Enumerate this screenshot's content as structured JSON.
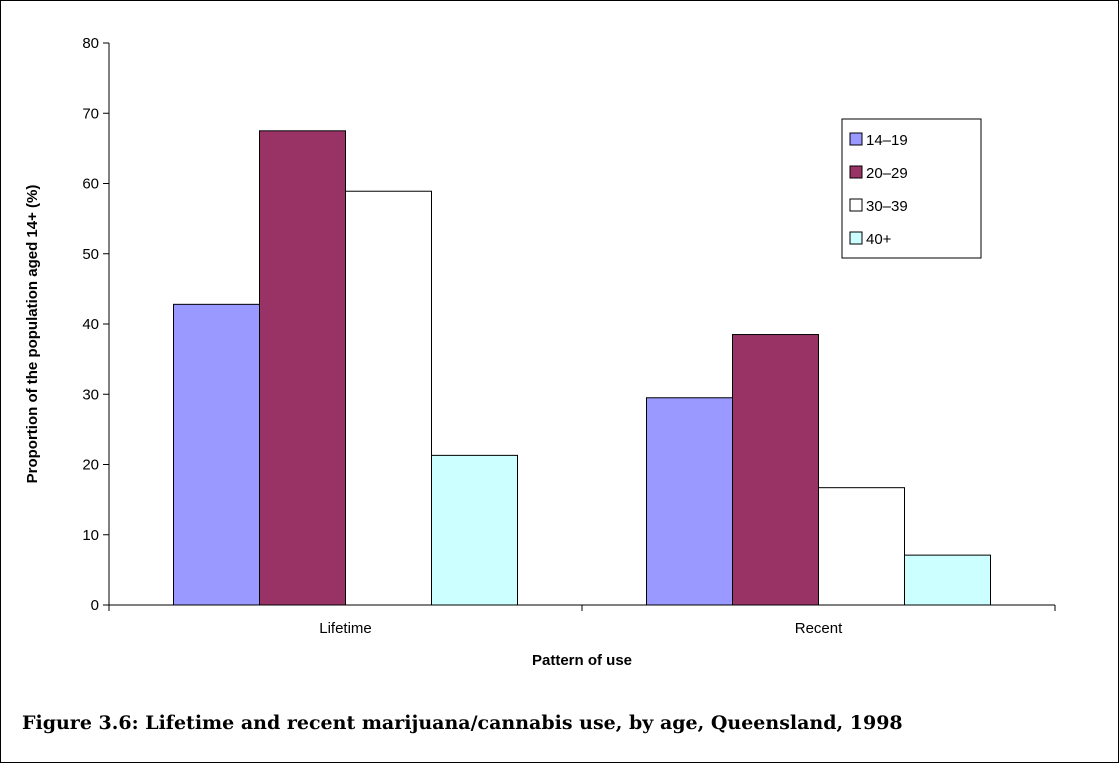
{
  "caption": "Figure 3.6: Lifetime and recent marijuana/cannabis use, by age, Queensland, 1998",
  "chart_data": {
    "type": "bar",
    "title": "",
    "xlabel": "Pattern of use",
    "ylabel": "Proportion of the population aged 14+ (%)",
    "ylim": [
      0,
      80
    ],
    "yticks": [
      0,
      10,
      20,
      30,
      40,
      50,
      60,
      70,
      80
    ],
    "categories": [
      "Lifetime",
      "Recent"
    ],
    "grid": false,
    "legend_position": "top-right",
    "series": [
      {
        "name": "14–19",
        "color": "#9999ff",
        "values": [
          42.8,
          29.5
        ]
      },
      {
        "name": "20–29",
        "color": "#993366",
        "values": [
          67.5,
          38.5
        ]
      },
      {
        "name": "30–39",
        "color": "#ffffff",
        "values": [
          58.9,
          16.7
        ]
      },
      {
        "name": "40+",
        "color": "#ccffff",
        "values": [
          21.3,
          7.1
        ]
      }
    ]
  }
}
